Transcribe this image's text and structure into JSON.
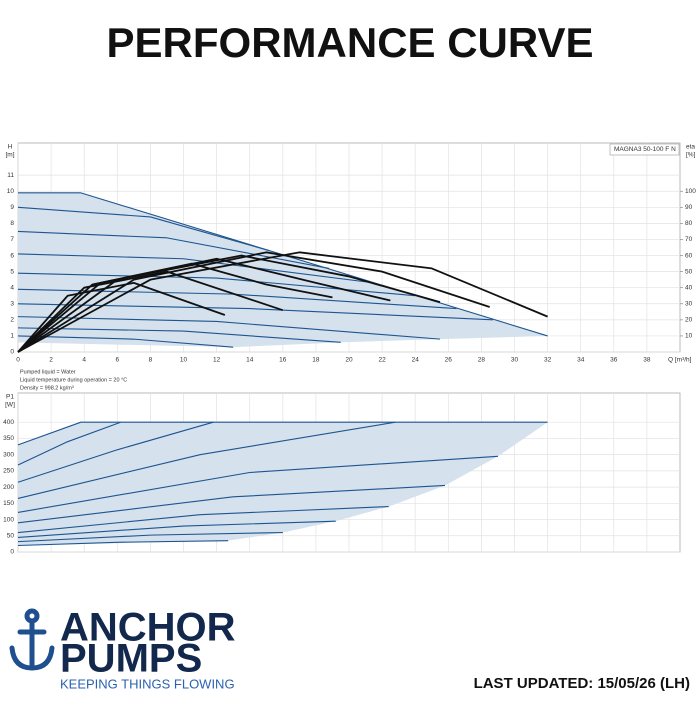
{
  "title": "PERFORMANCE CURVE",
  "notes": [
    "Pumped liquid = Water",
    "Liquid temperature during operation = 20 °C",
    "Density = 998.2 kg/m³"
  ],
  "logo": {
    "line1": "ANCHOR",
    "line2": "PUMPS",
    "tagline": "KEEPING THINGS FLOWING"
  },
  "footer": "LAST UPDATED: 15/05/26 (LH)",
  "chart_data": [
    {
      "type": "line",
      "label": "MAGNA3 50-100 F N",
      "y_label": "H",
      "y_unit": "[m]",
      "y2_label": "eta",
      "y2_unit": "[%]",
      "x_label": "Q [m³/h]",
      "xtick_labels": true,
      "grid": true,
      "xlim": [
        0,
        40
      ],
      "xticks": [
        0,
        2,
        4,
        6,
        8,
        10,
        12,
        14,
        16,
        18,
        20,
        22,
        24,
        26,
        28,
        30,
        32,
        34,
        36,
        38
      ],
      "ylim": [
        0,
        13
      ],
      "yticks": [
        0,
        1,
        2,
        3,
        4,
        5,
        6,
        7,
        8,
        9,
        10,
        11
      ],
      "y2lim": [
        0,
        130
      ],
      "y2ticks": [
        10,
        20,
        30,
        40,
        50,
        60,
        70,
        80,
        90,
        100
      ],
      "series": [
        {
          "fill": "#d5e1ec",
          "x": [
            0,
            3.8,
            32,
            25.5,
            19.5,
            13,
            0
          ],
          "values": [
            9.9,
            9.9,
            1.0,
            0.8,
            0.6,
            0.3,
            0.6
          ]
        },
        {
          "color": "#1d5591",
          "x": [
            0,
            3.8,
            32
          ],
          "values": [
            9.9,
            9.9,
            1.0
          ]
        },
        {
          "color": "#1d5591",
          "x": [
            0,
            8,
            15.2
          ],
          "values": [
            9.0,
            8.4,
            6.3
          ]
        },
        {
          "color": "#1d5591",
          "x": [
            0,
            9,
            18.8
          ],
          "values": [
            7.5,
            7.1,
            5.2
          ]
        },
        {
          "color": "#1d5591",
          "x": [
            0,
            10,
            21.5
          ],
          "values": [
            6.1,
            5.8,
            4.3
          ]
        },
        {
          "color": "#1d5591",
          "x": [
            0,
            12,
            24
          ],
          "values": [
            4.9,
            4.6,
            3.5
          ]
        },
        {
          "color": "#1d5591",
          "x": [
            0,
            13,
            26.5
          ],
          "values": [
            3.9,
            3.6,
            2.7
          ]
        },
        {
          "color": "#1d5591",
          "x": [
            0,
            14,
            28.7
          ],
          "values": [
            3.0,
            2.7,
            2.0
          ]
        },
        {
          "color": "#1d5591",
          "x": [
            0,
            12,
            25.5
          ],
          "values": [
            2.2,
            1.9,
            0.8
          ]
        },
        {
          "color": "#1d5591",
          "x": [
            0,
            10,
            19.5
          ],
          "values": [
            1.5,
            1.3,
            0.6
          ]
        },
        {
          "color": "#1d5591",
          "x": [
            0,
            7,
            13
          ],
          "values": [
            1.0,
            0.8,
            0.3
          ]
        },
        {
          "color": "#111111",
          "axis": "y2",
          "x": [
            0,
            8,
            17,
            25,
            32
          ],
          "values": [
            0,
            45,
            62,
            52,
            22
          ]
        },
        {
          "color": "#111111",
          "axis": "y2",
          "x": [
            0,
            7,
            15,
            22,
            28.5
          ],
          "values": [
            0,
            45,
            62,
            50,
            28
          ]
        },
        {
          "color": "#111111",
          "axis": "y2",
          "x": [
            0,
            6,
            13.5,
            20,
            25.5
          ],
          "values": [
            0,
            45,
            60,
            47,
            31
          ]
        },
        {
          "color": "#111111",
          "axis": "y2",
          "x": [
            0,
            5,
            12,
            18,
            22.5
          ],
          "values": [
            0,
            43,
            58,
            43,
            32
          ]
        },
        {
          "color": "#111111",
          "axis": "y2",
          "x": [
            0,
            4.5,
            10.5,
            15,
            19
          ],
          "values": [
            0,
            42,
            55,
            42,
            34
          ]
        },
        {
          "color": "#111111",
          "axis": "y2",
          "x": [
            0,
            4,
            9,
            16
          ],
          "values": [
            0,
            40,
            50,
            26
          ]
        },
        {
          "color": "#111111",
          "axis": "y2",
          "x": [
            0,
            3,
            7,
            12.5
          ],
          "values": [
            0,
            35,
            43,
            23
          ]
        }
      ]
    },
    {
      "type": "line",
      "y_label": "P1",
      "y_unit": "[W]",
      "xtick_labels": false,
      "grid": true,
      "xlim": [
        0,
        40
      ],
      "xticks": [
        0,
        2,
        4,
        6,
        8,
        10,
        12,
        14,
        16,
        18,
        20,
        22,
        24,
        26,
        28,
        30,
        32,
        34,
        36,
        38
      ],
      "ylim": [
        0,
        490
      ],
      "yticks": [
        0,
        50,
        100,
        150,
        200,
        250,
        300,
        350,
        400
      ],
      "series": [
        {
          "fill": "#d5e1ec",
          "x": [
            0,
            3.8,
            32,
            29,
            25.8,
            22.4,
            19.2,
            16,
            12.7,
            0
          ],
          "values": [
            330,
            400,
            400,
            295,
            205,
            140,
            95,
            60,
            35,
            20
          ]
        },
        {
          "color": "#1d5591",
          "x": [
            0,
            3.8,
            32
          ],
          "values": [
            330,
            400,
            400
          ]
        },
        {
          "color": "#1d5591",
          "x": [
            0,
            3,
            6.2
          ],
          "values": [
            268,
            340,
            400
          ]
        },
        {
          "color": "#1d5591",
          "x": [
            0,
            6,
            11.8
          ],
          "values": [
            215,
            315,
            400
          ]
        },
        {
          "color": "#1d5591",
          "x": [
            0,
            11,
            22.8
          ],
          "values": [
            165,
            300,
            400
          ]
        },
        {
          "color": "#1d5591",
          "x": [
            0,
            14,
            29
          ],
          "values": [
            122,
            245,
            295
          ]
        },
        {
          "color": "#1d5591",
          "x": [
            0,
            13,
            25.8
          ],
          "values": [
            90,
            170,
            205
          ]
        },
        {
          "color": "#1d5591",
          "x": [
            0,
            11,
            22.4
          ],
          "values": [
            60,
            115,
            140
          ]
        },
        {
          "color": "#1d5591",
          "x": [
            0,
            10,
            19.2
          ],
          "values": [
            45,
            80,
            95
          ]
        },
        {
          "color": "#1d5591",
          "x": [
            0,
            8,
            16
          ],
          "values": [
            32,
            52,
            60
          ]
        },
        {
          "color": "#1d5591",
          "x": [
            0,
            6,
            12.7
          ],
          "values": [
            20,
            30,
            35
          ]
        }
      ]
    }
  ]
}
